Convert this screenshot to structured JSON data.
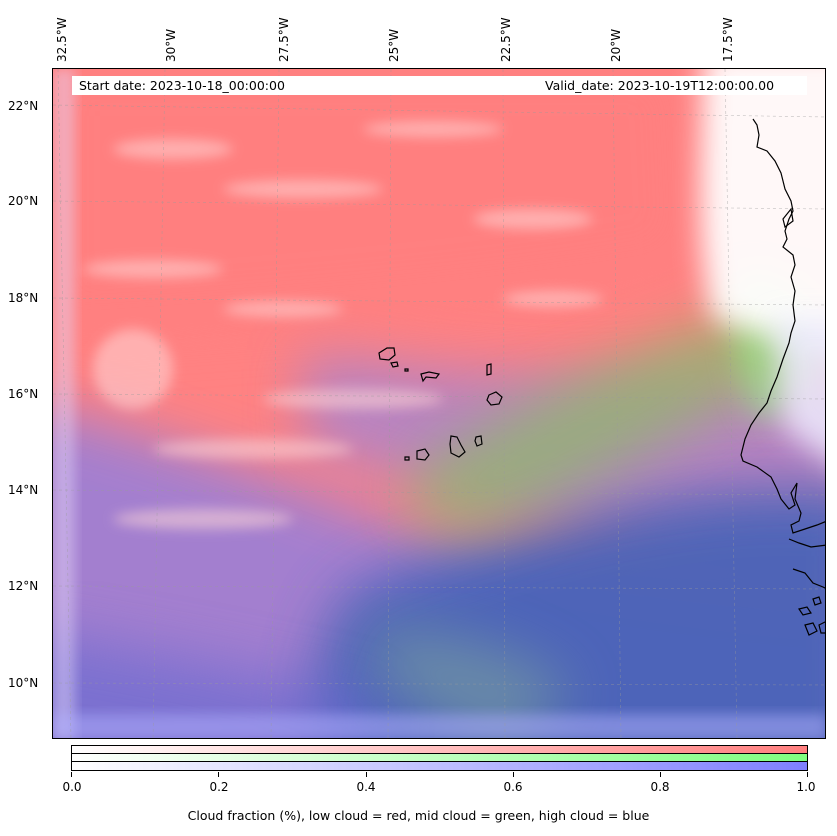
{
  "map": {
    "start_date_label": "Start date: 2023-10-18_00:00:00",
    "valid_date_label": "Valid_date: 2023-10-19T12:00:00.00",
    "longitude_ticks": [
      "32.5°W",
      "30°W",
      "27.5°W",
      "25°W",
      "22.5°W",
      "20°W",
      "17.5°W"
    ],
    "latitude_ticks": [
      "22°N",
      "20°N",
      "18°N",
      "16°N",
      "14°N",
      "12°N",
      "10°N"
    ],
    "colors": {
      "low_cloud": "#ff7f7f",
      "mid_cloud": "#7fff7f",
      "high_cloud": "#7f7fff",
      "deep_blue": "#3f5fbf",
      "coastline": "#000000"
    }
  },
  "colorbar": {
    "tick_labels": [
      "0.0",
      "0.2",
      "0.4",
      "0.6",
      "0.8",
      "1.0"
    ],
    "caption": "Cloud fraction (%), low cloud = red, mid cloud = green, high cloud = blue"
  }
}
